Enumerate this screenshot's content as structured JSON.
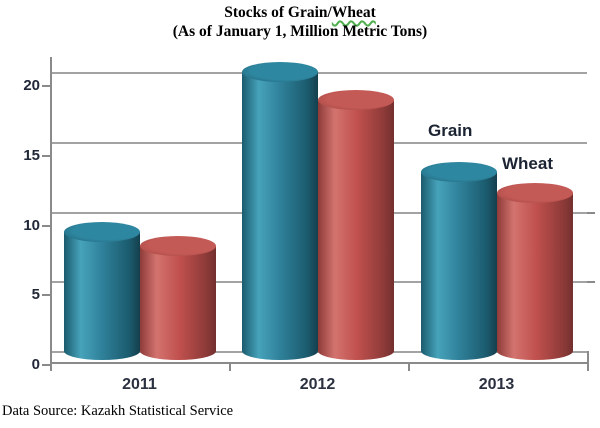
{
  "title": {
    "line1_prefix": "Stocks of Grain/",
    "line1_underlined": "Wheat",
    "line2": "(As of January 1, Million Metric Tons)"
  },
  "source_note": "Data Source: Kazakh Statistical Service",
  "chart_data": {
    "type": "bar",
    "style": "3d-cylinder",
    "title": "Stocks of Grain/Wheat (As of January 1, Million Metric Tons)",
    "categories": [
      "2011",
      "2012",
      "2013"
    ],
    "series": [
      {
        "name": "Grain",
        "values": [
          9.5,
          21,
          13.8
        ],
        "color": "#2E7F98",
        "shade_edge": "#1B5B6E",
        "shade_light": "#46A3BA",
        "shade_dark": "#143F4D",
        "top_color": "#2E87A0",
        "top_rim": "#1E6075"
      },
      {
        "name": "Wheat",
        "values": [
          8.5,
          19,
          12.3
        ],
        "color": "#C0504D",
        "shade_edge": "#8E3B39",
        "shade_light": "#D3736F",
        "shade_dark": "#73302F",
        "top_color": "#C45A56",
        "top_rim": "#9E4340"
      }
    ],
    "xlabel": "",
    "ylabel": "",
    "ylim": [
      0,
      21.5
    ],
    "yticks": [
      0,
      5,
      10,
      15,
      20
    ],
    "grid": true,
    "legend_position": "inline-annotations",
    "annotations": [
      {
        "series": "Grain",
        "text": "Grain"
      },
      {
        "series": "Wheat",
        "text": "Wheat"
      }
    ]
  }
}
